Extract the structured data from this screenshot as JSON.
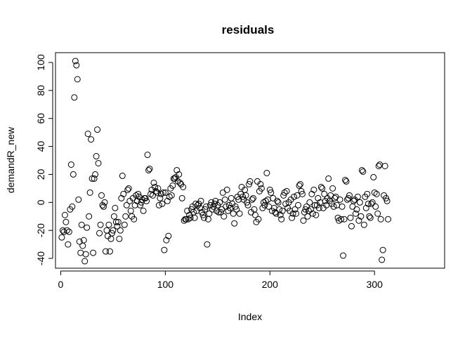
{
  "chart_data": {
    "type": "scatter",
    "title": "residuals",
    "xlabel": "Index",
    "ylabel": "demandR_new",
    "xlim": [
      -5,
      367
    ],
    "ylim": [
      -47,
      107
    ],
    "xticks": [
      0,
      100,
      200,
      300
    ],
    "yticks": [
      -40,
      -20,
      0,
      20,
      40,
      60,
      80,
      100
    ],
    "marker": "open-circle",
    "grid": false,
    "legend": "none",
    "points": [
      [
        1,
        -25
      ],
      [
        2,
        -20
      ],
      [
        3,
        -21
      ],
      [
        4,
        -9
      ],
      [
        5,
        -14
      ],
      [
        6,
        -20
      ],
      [
        7,
        -30
      ],
      [
        8,
        -21
      ],
      [
        9,
        -5
      ],
      [
        10,
        27
      ],
      [
        11,
        -3
      ],
      [
        12,
        20
      ],
      [
        13,
        75
      ],
      [
        14,
        101
      ],
      [
        15,
        98
      ],
      [
        16,
        88
      ],
      [
        17,
        2
      ],
      [
        18,
        -28
      ],
      [
        19,
        -36
      ],
      [
        20,
        -16
      ],
      [
        21,
        -31
      ],
      [
        22,
        -27
      ],
      [
        23,
        -42
      ],
      [
        24,
        -37
      ],
      [
        25,
        -18
      ],
      [
        26,
        49
      ],
      [
        27,
        -10
      ],
      [
        28,
        7
      ],
      [
        29,
        45
      ],
      [
        30,
        17
      ],
      [
        31,
        -36
      ],
      [
        32,
        17
      ],
      [
        33,
        20
      ],
      [
        34,
        33
      ],
      [
        35,
        52
      ],
      [
        36,
        28
      ],
      [
        37,
        -22
      ],
      [
        38,
        -16
      ],
      [
        39,
        5
      ],
      [
        40,
        -2
      ],
      [
        41,
        -3
      ],
      [
        42,
        0
      ],
      [
        43,
        -35
      ],
      [
        44,
        -20
      ],
      [
        45,
        -24
      ],
      [
        46,
        -16
      ],
      [
        47,
        -35
      ],
      [
        48,
        -26
      ],
      [
        49,
        -22
      ],
      [
        50,
        -20
      ],
      [
        51,
        -10
      ],
      [
        52,
        -4
      ],
      [
        53,
        -14
      ],
      [
        54,
        -17
      ],
      [
        55,
        -14
      ],
      [
        56,
        -26
      ],
      [
        57,
        -20
      ],
      [
        58,
        3
      ],
      [
        59,
        19
      ],
      [
        60,
        6
      ],
      [
        61,
        -16
      ],
      [
        62,
        -10
      ],
      [
        63,
        -2
      ],
      [
        64,
        9
      ],
      [
        65,
        10
      ],
      [
        66,
        1
      ],
      [
        67,
        -6
      ],
      [
        68,
        -10
      ],
      [
        69,
        3
      ],
      [
        70,
        -12
      ],
      [
        71,
        -2
      ],
      [
        72,
        5
      ],
      [
        73,
        1
      ],
      [
        74,
        6
      ],
      [
        75,
        4
      ],
      [
        76,
        -2
      ],
      [
        77,
        0
      ],
      [
        78,
        2
      ],
      [
        79,
        -6
      ],
      [
        80,
        3
      ],
      [
        81,
        3
      ],
      [
        82,
        1
      ],
      [
        83,
        34
      ],
      [
        84,
        23
      ],
      [
        85,
        24
      ],
      [
        86,
        6
      ],
      [
        87,
        9
      ],
      [
        88,
        5
      ],
      [
        89,
        14
      ],
      [
        90,
        11
      ],
      [
        91,
        8
      ],
      [
        92,
        7
      ],
      [
        93,
        10
      ],
      [
        94,
        -2
      ],
      [
        95,
        3
      ],
      [
        96,
        6
      ],
      [
        97,
        -1
      ],
      [
        98,
        7
      ],
      [
        99,
        -34
      ],
      [
        100,
        7
      ],
      [
        101,
        -27
      ],
      [
        102,
        1
      ],
      [
        103,
        -24
      ],
      [
        104,
        4
      ],
      [
        105,
        10
      ],
      [
        106,
        5
      ],
      [
        107,
        12
      ],
      [
        108,
        17
      ],
      [
        109,
        17
      ],
      [
        110,
        18
      ],
      [
        111,
        23
      ],
      [
        112,
        15
      ],
      [
        113,
        20
      ],
      [
        114,
        14
      ],
      [
        115,
        13
      ],
      [
        116,
        3
      ],
      [
        117,
        11
      ],
      [
        118,
        -13
      ],
      [
        119,
        -12
      ],
      [
        120,
        -12
      ],
      [
        121,
        -6
      ],
      [
        122,
        -12
      ],
      [
        123,
        -9
      ],
      [
        124,
        -11
      ],
      [
        125,
        -5
      ],
      [
        126,
        -3
      ],
      [
        127,
        -7
      ],
      [
        128,
        -11
      ],
      [
        129,
        -1
      ],
      [
        130,
        -6
      ],
      [
        131,
        -2
      ],
      [
        132,
        -1
      ],
      [
        133,
        -4
      ],
      [
        134,
        1
      ],
      [
        135,
        -7
      ],
      [
        136,
        -9
      ],
      [
        137,
        -11
      ],
      [
        138,
        -5
      ],
      [
        139,
        -3
      ],
      [
        140,
        -30
      ],
      [
        141,
        -12
      ],
      [
        142,
        -8
      ],
      [
        143,
        -2
      ],
      [
        144,
        0
      ],
      [
        145,
        -5
      ],
      [
        146,
        -3
      ],
      [
        147,
        -1
      ],
      [
        148,
        1
      ],
      [
        149,
        -6
      ],
      [
        150,
        -2
      ],
      [
        151,
        -7
      ],
      [
        152,
        0
      ],
      [
        153,
        -7
      ],
      [
        154,
        -5
      ],
      [
        155,
        7
      ],
      [
        156,
        -10
      ],
      [
        157,
        2
      ],
      [
        158,
        -3
      ],
      [
        159,
        9
      ],
      [
        160,
        -6
      ],
      [
        161,
        -2
      ],
      [
        162,
        -4
      ],
      [
        163,
        3
      ],
      [
        164,
        -1
      ],
      [
        165,
        -8
      ],
      [
        166,
        -15
      ],
      [
        167,
        -3
      ],
      [
        168,
        -5
      ],
      [
        169,
        4
      ],
      [
        170,
        2
      ],
      [
        171,
        -8
      ],
      [
        172,
        6
      ],
      [
        173,
        11
      ],
      [
        174,
        4
      ],
      [
        175,
        2
      ],
      [
        176,
        9
      ],
      [
        177,
        5
      ],
      [
        178,
        0
      ],
      [
        179,
        -2
      ],
      [
        180,
        13
      ],
      [
        181,
        15
      ],
      [
        182,
        -7
      ],
      [
        183,
        2
      ],
      [
        184,
        3
      ],
      [
        185,
        -5
      ],
      [
        186,
        -9
      ],
      [
        187,
        -14
      ],
      [
        188,
        15
      ],
      [
        189,
        -12
      ],
      [
        190,
        8
      ],
      [
        191,
        13
      ],
      [
        192,
        10
      ],
      [
        193,
        -4
      ],
      [
        194,
        0
      ],
      [
        195,
        -2
      ],
      [
        196,
        1
      ],
      [
        197,
        21
      ],
      [
        198,
        2
      ],
      [
        199,
        -3
      ],
      [
        200,
        9
      ],
      [
        201,
        7
      ],
      [
        202,
        -6
      ],
      [
        203,
        3
      ],
      [
        204,
        -4
      ],
      [
        205,
        -7
      ],
      [
        206,
        -8
      ],
      [
        207,
        1
      ],
      [
        208,
        0
      ],
      [
        209,
        -5
      ],
      [
        210,
        -9
      ],
      [
        211,
        -12
      ],
      [
        212,
        -6
      ],
      [
        213,
        5
      ],
      [
        214,
        7
      ],
      [
        215,
        -1
      ],
      [
        216,
        8
      ],
      [
        217,
        -4
      ],
      [
        218,
        0
      ],
      [
        219,
        -6
      ],
      [
        220,
        2
      ],
      [
        221,
        -11
      ],
      [
        222,
        -8
      ],
      [
        223,
        4
      ],
      [
        224,
        -5
      ],
      [
        225,
        -8
      ],
      [
        226,
        5
      ],
      [
        227,
        -2
      ],
      [
        228,
        12
      ],
      [
        229,
        13
      ],
      [
        230,
        8
      ],
      [
        231,
        6
      ],
      [
        232,
        -13
      ],
      [
        233,
        -7
      ],
      [
        234,
        -5
      ],
      [
        235,
        -3
      ],
      [
        236,
        -10
      ],
      [
        237,
        -6
      ],
      [
        238,
        0
      ],
      [
        239,
        -5
      ],
      [
        240,
        6
      ],
      [
        241,
        -8
      ],
      [
        242,
        9
      ],
      [
        243,
        -2
      ],
      [
        244,
        -9
      ],
      [
        245,
        -2
      ],
      [
        246,
        3
      ],
      [
        247,
        -4
      ],
      [
        248,
        0
      ],
      [
        249,
        11
      ],
      [
        250,
        10
      ],
      [
        251,
        -4
      ],
      [
        252,
        6
      ],
      [
        253,
        1
      ],
      [
        254,
        -2
      ],
      [
        255,
        3
      ],
      [
        256,
        17
      ],
      [
        257,
        1
      ],
      [
        258,
        5
      ],
      [
        259,
        -1
      ],
      [
        260,
        10
      ],
      [
        261,
        -3
      ],
      [
        262,
        3
      ],
      [
        263,
        4
      ],
      [
        264,
        -2
      ],
      [
        265,
        -11
      ],
      [
        266,
        -13
      ],
      [
        267,
        2
      ],
      [
        268,
        -12
      ],
      [
        269,
        -3
      ],
      [
        270,
        -38
      ],
      [
        271,
        -12
      ],
      [
        272,
        16
      ],
      [
        273,
        15
      ],
      [
        274,
        2
      ],
      [
        275,
        3
      ],
      [
        276,
        5
      ],
      [
        277,
        -11
      ],
      [
        278,
        -17
      ],
      [
        279,
        -3
      ],
      [
        280,
        1
      ],
      [
        281,
        2
      ],
      [
        282,
        -8
      ],
      [
        283,
        -5
      ],
      [
        284,
        4
      ],
      [
        285,
        -13
      ],
      [
        286,
        0
      ],
      [
        287,
        -10
      ],
      [
        288,
        23
      ],
      [
        289,
        22
      ],
      [
        290,
        -16
      ],
      [
        291,
        4
      ],
      [
        292,
        -4
      ],
      [
        293,
        6
      ],
      [
        294,
        -1
      ],
      [
        295,
        -10
      ],
      [
        296,
        -11
      ],
      [
        297,
        -1
      ],
      [
        298,
        0
      ],
      [
        299,
        18
      ],
      [
        300,
        7
      ],
      [
        301,
        -3
      ],
      [
        302,
        6
      ],
      [
        303,
        -8
      ],
      [
        304,
        26
      ],
      [
        305,
        27
      ],
      [
        306,
        -12
      ],
      [
        307,
        -41
      ],
      [
        308,
        -34
      ],
      [
        309,
        5
      ],
      [
        310,
        26
      ],
      [
        311,
        3
      ],
      [
        312,
        1
      ],
      [
        313,
        -12
      ]
    ]
  }
}
